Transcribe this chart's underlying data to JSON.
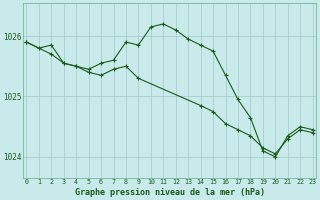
{
  "line1_x": [
    0,
    1,
    2,
    3,
    4,
    5,
    6,
    7,
    8,
    9,
    10,
    11,
    12,
    13,
    14,
    15,
    16,
    17,
    18,
    19,
    20,
    21,
    22,
    23
  ],
  "line1_y": [
    1025.9,
    1025.8,
    1025.85,
    1025.55,
    1025.5,
    1025.45,
    1025.55,
    1025.6,
    1025.9,
    1025.85,
    1026.15,
    1026.2,
    1026.1,
    1025.95,
    1025.85,
    1025.75,
    1025.35,
    1024.95,
    1024.65,
    1024.1,
    1024.0,
    1024.35,
    1024.5,
    1024.45
  ],
  "line2_x": [
    0,
    2,
    3,
    4,
    5,
    6,
    7,
    8,
    9,
    14,
    15,
    16,
    17,
    18,
    19,
    20,
    21,
    22,
    23
  ],
  "line2_y": [
    1025.9,
    1025.7,
    1025.55,
    1025.5,
    1025.4,
    1025.35,
    1025.45,
    1025.5,
    1025.3,
    1024.85,
    1024.75,
    1024.55,
    1024.45,
    1024.35,
    1024.15,
    1024.05,
    1024.3,
    1024.45,
    1024.4
  ],
  "line_color": "#1a5c1a",
  "bg_color": "#c8eaea",
  "grid_color": "#a0c8c8",
  "xlabel": "Graphe pression niveau de la mer (hPa)",
  "xlabel_color": "#1a5c1a",
  "ylim": [
    1023.65,
    1026.55
  ],
  "yticks": [
    1024,
    1025,
    1026
  ],
  "xticks": [
    0,
    1,
    2,
    3,
    4,
    5,
    6,
    7,
    8,
    9,
    10,
    11,
    12,
    13,
    14,
    15,
    16,
    17,
    18,
    19,
    20,
    21,
    22,
    23
  ]
}
